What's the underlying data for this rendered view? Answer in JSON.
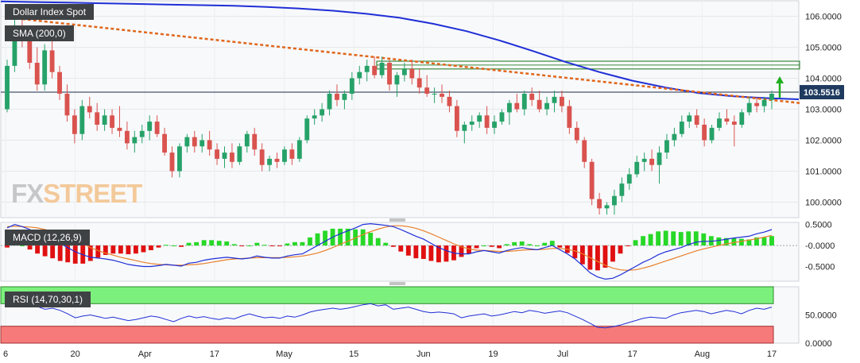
{
  "chart_title": "Dollar Index Spot",
  "sma_label": "SMA (200,0)",
  "macd_label": "MACD (12,26,9)",
  "rsi_label": "RSI (14,70,30,1)",
  "logo": {
    "part1": "FX",
    "part2": "STREET"
  },
  "current_price_label": "103.5516",
  "colors": {
    "up": "#26a269",
    "down": "#d9534f",
    "sma": "#1f2fd6",
    "trend": "#e0661a",
    "macd_line": "#1f2fd6",
    "signal_line": "#e8802a",
    "hist_up": "#27d827",
    "hist_down": "#e01010",
    "rsi_line": "#1f2fd6",
    "overbought": "#7cf07c",
    "oversold": "#f77a7a",
    "arrow": "#1fae1f"
  },
  "chart_data": [
    {
      "type": "candlestick",
      "title": "Dollar Index Spot",
      "ylim": [
        99.5,
        106.5
      ],
      "yticks": [
        "106.0000",
        "105.0000",
        "104.0000",
        "103.0000",
        "102.0000",
        "101.0000",
        "100.0000"
      ],
      "xticks": [
        "6",
        "20",
        "Apr",
        "17",
        "May",
        "15",
        "Jun",
        "19",
        "Jul",
        "17",
        "Aug",
        "17"
      ],
      "sma_value_series": [
        106.48,
        106.46,
        106.44,
        106.42,
        106.4,
        106.38,
        106.36,
        106.34,
        106.3,
        106.25,
        106.18,
        106.08,
        105.95,
        105.76,
        105.52,
        105.22,
        104.88,
        104.52,
        104.2,
        103.92,
        103.7,
        103.52,
        103.42,
        103.36,
        103.32
      ],
      "trendline": {
        "start": 105.95,
        "end": 103.2
      },
      "resistance_zone": [
        104.3,
        104.55
      ],
      "current_price": 103.55,
      "candles": [
        [
          103.0,
          104.6,
          102.9,
          104.4
        ],
        [
          104.4,
          105.9,
          104.2,
          105.6
        ],
        [
          105.6,
          106.3,
          105.0,
          105.2
        ],
        [
          105.2,
          105.6,
          104.3,
          104.5
        ],
        [
          104.5,
          105.0,
          103.6,
          103.8
        ],
        [
          103.8,
          105.1,
          103.6,
          104.9
        ],
        [
          104.9,
          105.4,
          104.0,
          104.2
        ],
        [
          104.2,
          104.4,
          103.3,
          103.5
        ],
        [
          103.5,
          103.8,
          102.6,
          102.8
        ],
        [
          102.8,
          103.0,
          101.9,
          102.2
        ],
        [
          102.2,
          103.3,
          102.0,
          103.1
        ],
        [
          103.1,
          103.4,
          102.7,
          102.9
        ],
        [
          102.9,
          103.2,
          102.3,
          102.5
        ],
        [
          102.5,
          103.0,
          102.3,
          102.8
        ],
        [
          102.8,
          103.0,
          102.2,
          102.4
        ],
        [
          102.4,
          103.1,
          102.1,
          102.3
        ],
        [
          102.3,
          102.6,
          101.7,
          101.9
        ],
        [
          101.9,
          102.3,
          101.6,
          102.1
        ],
        [
          102.1,
          102.5,
          101.9,
          102.3
        ],
        [
          102.3,
          102.8,
          102.0,
          102.6
        ],
        [
          102.6,
          102.8,
          102.1,
          102.2
        ],
        [
          102.2,
          102.4,
          101.5,
          101.6
        ],
        [
          101.6,
          101.8,
          100.8,
          101.0
        ],
        [
          101.0,
          101.9,
          100.8,
          101.8
        ],
        [
          101.8,
          102.2,
          101.6,
          102.1
        ],
        [
          102.1,
          102.3,
          101.6,
          101.8
        ],
        [
          101.8,
          102.2,
          101.6,
          102.0
        ],
        [
          102.0,
          102.3,
          101.5,
          101.7
        ],
        [
          101.7,
          101.9,
          101.2,
          101.4
        ],
        [
          101.4,
          101.8,
          101.1,
          101.6
        ],
        [
          101.6,
          101.9,
          101.1,
          101.3
        ],
        [
          101.3,
          101.9,
          101.2,
          101.8
        ],
        [
          101.8,
          102.3,
          101.6,
          102.2
        ],
        [
          102.2,
          102.4,
          101.5,
          101.7
        ],
        [
          101.7,
          101.9,
          101.0,
          101.2
        ],
        [
          101.2,
          101.5,
          101.0,
          101.4
        ],
        [
          101.4,
          101.6,
          101.1,
          101.3
        ],
        [
          101.3,
          101.8,
          101.2,
          101.7
        ],
        [
          101.7,
          101.9,
          101.2,
          101.4
        ],
        [
          101.4,
          102.1,
          101.3,
          102.0
        ],
        [
          102.0,
          102.8,
          101.9,
          102.7
        ],
        [
          102.7,
          103.0,
          102.5,
          102.8
        ],
        [
          102.8,
          103.2,
          102.6,
          103.0
        ],
        [
          103.0,
          103.6,
          102.8,
          103.5
        ],
        [
          103.5,
          103.8,
          103.1,
          103.3
        ],
        [
          103.3,
          103.6,
          103.0,
          103.5
        ],
        [
          103.5,
          104.2,
          103.3,
          104.0
        ],
        [
          104.0,
          104.4,
          103.8,
          104.2
        ],
        [
          104.2,
          104.6,
          103.9,
          104.4
        ],
        [
          104.4,
          104.7,
          104.0,
          104.1
        ],
        [
          104.1,
          104.7,
          104.0,
          104.5
        ],
        [
          104.5,
          104.6,
          103.6,
          103.8
        ],
        [
          103.8,
          104.2,
          103.4,
          104.1
        ],
        [
          104.1,
          104.5,
          103.9,
          104.3
        ],
        [
          104.3,
          104.6,
          103.8,
          104.0
        ],
        [
          104.0,
          104.3,
          103.5,
          103.7
        ],
        [
          103.7,
          104.1,
          103.4,
          103.5
        ],
        [
          103.5,
          103.7,
          103.2,
          103.5
        ],
        [
          103.5,
          103.8,
          103.2,
          103.4
        ],
        [
          103.4,
          103.6,
          102.9,
          103.1
        ],
        [
          103.1,
          103.3,
          102.1,
          102.3
        ],
        [
          102.3,
          102.6,
          101.9,
          102.5
        ],
        [
          102.5,
          102.8,
          102.3,
          102.6
        ],
        [
          102.6,
          102.9,
          102.4,
          102.8
        ],
        [
          102.8,
          103.1,
          102.2,
          102.4
        ],
        [
          102.4,
          102.8,
          102.2,
          102.6
        ],
        [
          102.6,
          103.0,
          102.5,
          102.9
        ],
        [
          102.9,
          103.3,
          102.5,
          103.2
        ],
        [
          103.2,
          103.5,
          102.9,
          103.0
        ],
        [
          103.0,
          103.6,
          102.8,
          103.5
        ],
        [
          103.5,
          103.7,
          103.1,
          103.3
        ],
        [
          103.3,
          103.6,
          102.9,
          103.0
        ],
        [
          103.0,
          103.4,
          102.8,
          103.2
        ],
        [
          103.2,
          103.6,
          102.9,
          103.4
        ],
        [
          103.4,
          103.6,
          102.9,
          103.1
        ],
        [
          103.1,
          103.3,
          102.2,
          102.4
        ],
        [
          102.4,
          102.6,
          101.9,
          102.0
        ],
        [
          102.0,
          102.1,
          101.1,
          101.3
        ],
        [
          101.3,
          101.4,
          99.9,
          100.1
        ],
        [
          100.1,
          100.3,
          99.6,
          99.8
        ],
        [
          99.8,
          100.0,
          99.6,
          99.9
        ],
        [
          99.9,
          100.4,
          99.6,
          100.2
        ],
        [
          100.2,
          100.8,
          100.0,
          100.6
        ],
        [
          100.6,
          101.1,
          100.4,
          100.9
        ],
        [
          100.9,
          101.5,
          100.8,
          101.3
        ],
        [
          101.3,
          101.6,
          101.0,
          101.4
        ],
        [
          101.4,
          101.7,
          101.0,
          101.2
        ],
        [
          101.2,
          101.8,
          100.6,
          101.6
        ],
        [
          101.6,
          102.2,
          101.4,
          102.0
        ],
        [
          102.0,
          102.4,
          101.8,
          102.2
        ],
        [
          102.2,
          102.8,
          102.1,
          102.6
        ],
        [
          102.6,
          102.9,
          102.4,
          102.8
        ],
        [
          102.8,
          103.0,
          102.4,
          102.5
        ],
        [
          102.5,
          102.7,
          101.8,
          102.0
        ],
        [
          102.0,
          102.5,
          101.9,
          102.4
        ],
        [
          102.4,
          102.9,
          102.3,
          102.7
        ],
        [
          102.7,
          103.0,
          102.5,
          102.6
        ],
        [
          102.6,
          102.8,
          101.8,
          102.5
        ],
        [
          102.5,
          103.0,
          102.4,
          102.9
        ],
        [
          102.9,
          103.4,
          102.8,
          103.2
        ],
        [
          103.2,
          103.4,
          102.9,
          103.1
        ],
        [
          103.1,
          103.4,
          102.9,
          103.3
        ],
        [
          103.3,
          103.6,
          103.0,
          103.5
        ]
      ]
    },
    {
      "type": "macd",
      "title": "MACD (12,26,9)",
      "ylim": [
        -0.85,
        0.55
      ],
      "yticks": [
        "0.5000",
        "-0.0000",
        "-0.5000"
      ],
      "macd_line": [
        0.42,
        0.5,
        0.45,
        0.38,
        0.3,
        0.22,
        0.15,
        0.05,
        -0.05,
        -0.15,
        -0.22,
        -0.28,
        -0.3,
        -0.32,
        -0.35,
        -0.4,
        -0.45,
        -0.48,
        -0.5,
        -0.5,
        -0.48,
        -0.45,
        -0.47,
        -0.49,
        -0.42,
        -0.4,
        -0.35,
        -0.32,
        -0.3,
        -0.28,
        -0.3,
        -0.32,
        -0.3,
        -0.25,
        -0.28,
        -0.3,
        -0.3,
        -0.25,
        -0.22,
        -0.2,
        -0.1,
        0.0,
        0.1,
        0.2,
        0.28,
        0.35,
        0.42,
        0.5,
        0.52,
        0.5,
        0.48,
        0.45,
        0.38,
        0.3,
        0.22,
        0.15,
        0.05,
        -0.05,
        -0.12,
        -0.18,
        -0.2,
        -0.2,
        -0.15,
        -0.12,
        -0.15,
        -0.18,
        -0.12,
        -0.08,
        -0.05,
        -0.08,
        -0.1,
        -0.05,
        0.0,
        -0.1,
        -0.2,
        -0.32,
        -0.48,
        -0.65,
        -0.75,
        -0.8,
        -0.78,
        -0.7,
        -0.6,
        -0.5,
        -0.4,
        -0.32,
        -0.22,
        -0.15,
        -0.1,
        -0.05,
        0.02,
        0.08,
        0.1,
        0.1,
        0.12,
        0.15,
        0.18,
        0.2,
        0.22,
        0.28,
        0.32,
        0.38
      ],
      "signal_line": [
        0.45,
        0.46,
        0.45,
        0.44,
        0.42,
        0.38,
        0.34,
        0.28,
        0.2,
        0.12,
        0.05,
        -0.05,
        -0.12,
        -0.18,
        -0.23,
        -0.28,
        -0.32,
        -0.36,
        -0.4,
        -0.43,
        -0.45,
        -0.46,
        -0.47,
        -0.47,
        -0.46,
        -0.45,
        -0.43,
        -0.4,
        -0.37,
        -0.34,
        -0.32,
        -0.31,
        -0.3,
        -0.29,
        -0.29,
        -0.29,
        -0.29,
        -0.28,
        -0.27,
        -0.25,
        -0.22,
        -0.18,
        -0.12,
        -0.05,
        0.03,
        0.1,
        0.18,
        0.26,
        0.33,
        0.39,
        0.44,
        0.47,
        0.47,
        0.45,
        0.41,
        0.35,
        0.28,
        0.2,
        0.12,
        0.04,
        -0.03,
        -0.08,
        -0.11,
        -0.12,
        -0.13,
        -0.14,
        -0.14,
        -0.13,
        -0.11,
        -0.1,
        -0.1,
        -0.09,
        -0.07,
        -0.07,
        -0.09,
        -0.13,
        -0.2,
        -0.29,
        -0.38,
        -0.47,
        -0.54,
        -0.58,
        -0.59,
        -0.58,
        -0.54,
        -0.49,
        -0.43,
        -0.37,
        -0.31,
        -0.25,
        -0.19,
        -0.13,
        -0.08,
        -0.04,
        0.0,
        0.04,
        0.07,
        0.1,
        0.13,
        0.16,
        0.2,
        0.24
      ]
    },
    {
      "type": "rsi",
      "title": "RSI (14,70,30,1)",
      "ylim": [
        0,
        100
      ],
      "yticks": [
        "50.0000",
        "0.0000"
      ],
      "overbought": 70,
      "oversold": 30,
      "values": [
        72,
        70,
        75,
        72,
        65,
        60,
        62,
        58,
        52,
        45,
        48,
        50,
        47,
        44,
        46,
        43,
        40,
        42,
        45,
        48,
        46,
        42,
        38,
        44,
        48,
        45,
        47,
        44,
        42,
        45,
        43,
        48,
        52,
        48,
        45,
        46,
        44,
        48,
        46,
        50,
        55,
        58,
        60,
        62,
        60,
        62,
        65,
        68,
        70,
        66,
        68,
        60,
        62,
        64,
        60,
        56,
        54,
        55,
        54,
        52,
        45,
        48,
        50,
        52,
        48,
        50,
        53,
        56,
        54,
        58,
        56,
        53,
        55,
        57,
        54,
        48,
        42,
        35,
        28,
        27,
        29,
        32,
        36,
        40,
        44,
        46,
        45,
        44,
        50,
        54,
        56,
        58,
        56,
        52,
        55,
        58,
        56,
        52,
        58,
        62,
        60,
        64
      ]
    }
  ]
}
